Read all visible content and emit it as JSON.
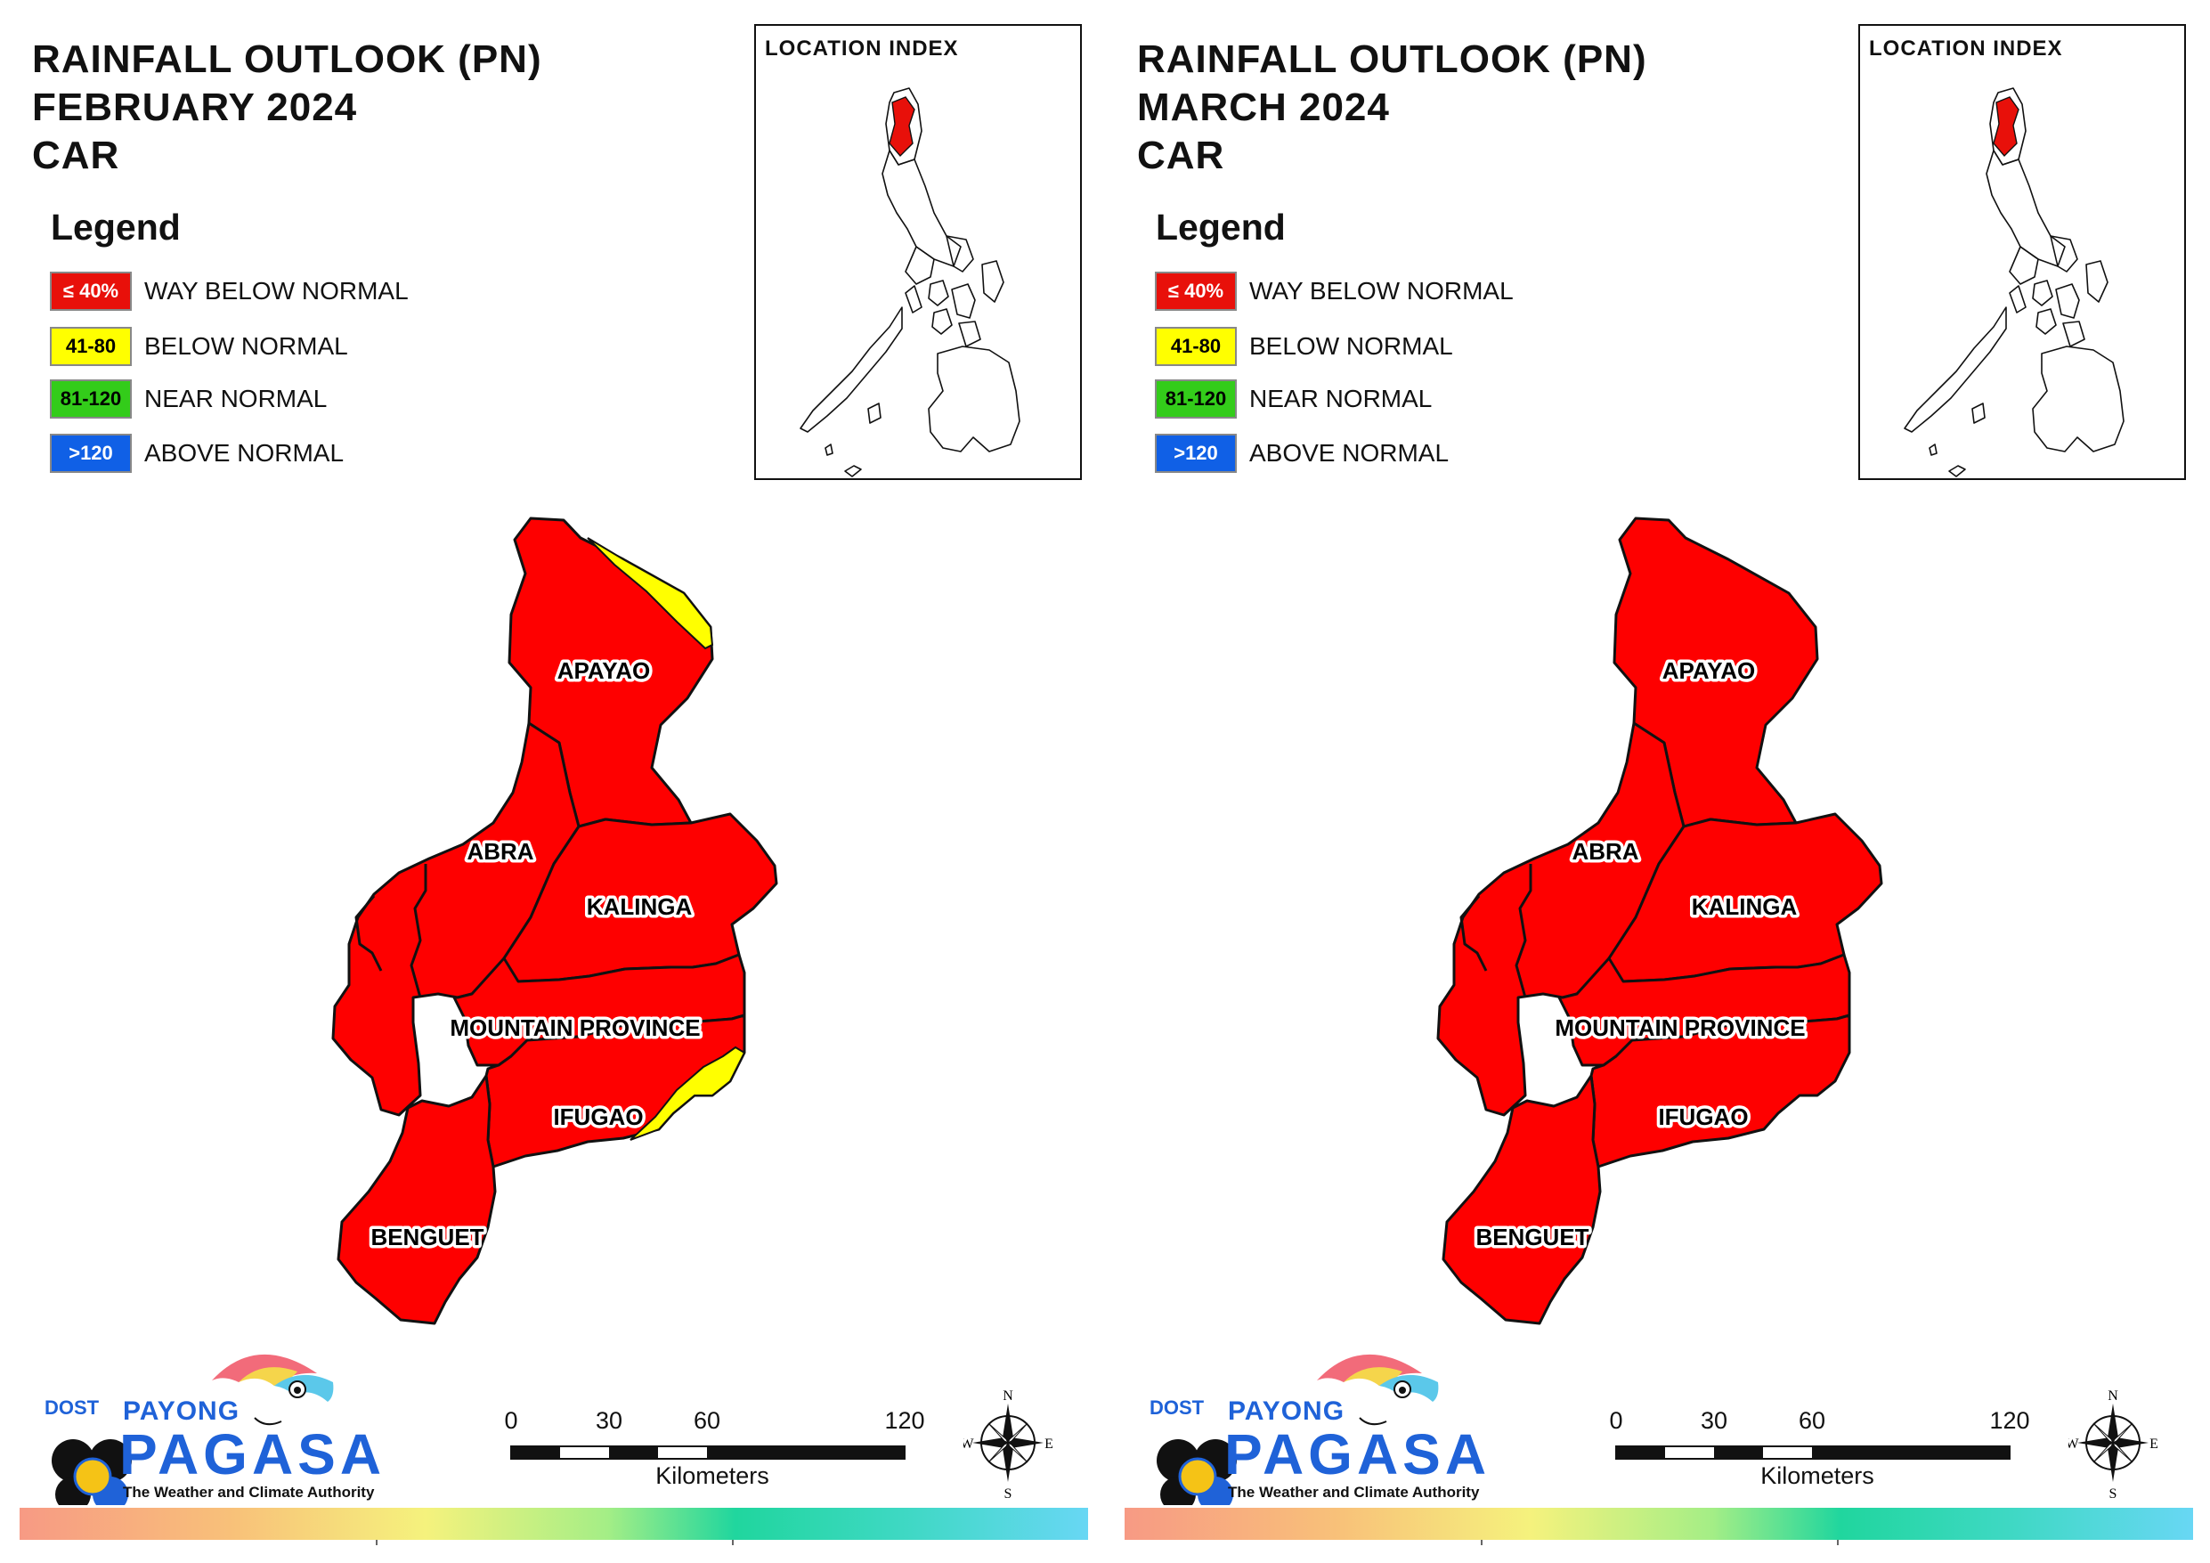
{
  "panels": [
    {
      "title_lines": [
        "RAINFALL OUTLOOK (PN)",
        "FEBRUARY 2024",
        "CAR"
      ],
      "yellow_patches": [
        "apayao-northeast",
        "ifugao-southeast"
      ]
    },
    {
      "title_lines": [
        "RAINFALL OUTLOOK (PN)",
        "MARCH 2024",
        "CAR"
      ],
      "yellow_patches": []
    }
  ],
  "legend": {
    "title": "Legend",
    "items": [
      {
        "range": "≤ 40%",
        "label": "WAY BELOW NORMAL",
        "color": "#e8100a",
        "text_color": "#ffffff"
      },
      {
        "range": "41-80",
        "label": "BELOW NORMAL",
        "color": "#ffff00",
        "text_color": "#000000"
      },
      {
        "range": "81-120",
        "label": "NEAR NORMAL",
        "color": "#33cc1a",
        "text_color": "#000000"
      },
      {
        "range": ">120",
        "label": "ABOVE NORMAL",
        "color": "#1060e6",
        "text_color": "#ffffff"
      }
    ]
  },
  "location_index": {
    "title": "LOCATION INDEX"
  },
  "provinces": [
    "APAYAO",
    "ABRA",
    "KALINGA",
    "MOUNTAIN PROVINCE",
    "IFUGAO",
    "BENGUET"
  ],
  "scale": {
    "ticks": [
      "0",
      "30",
      "60",
      "120"
    ],
    "unit": "Kilometers"
  },
  "compass": {
    "n": "N",
    "s": "S",
    "e": "E",
    "w": "W"
  },
  "logo": {
    "dost": "DOST",
    "payong": "PAYONG",
    "pagasa": "PAGASA",
    "tagline": "The Weather and Climate Authority"
  },
  "colors": {
    "way_below_fill": "#fe0000",
    "below_fill": "#ffff00",
    "boundary": "#111111",
    "logo_blue": "#1f62d8"
  }
}
